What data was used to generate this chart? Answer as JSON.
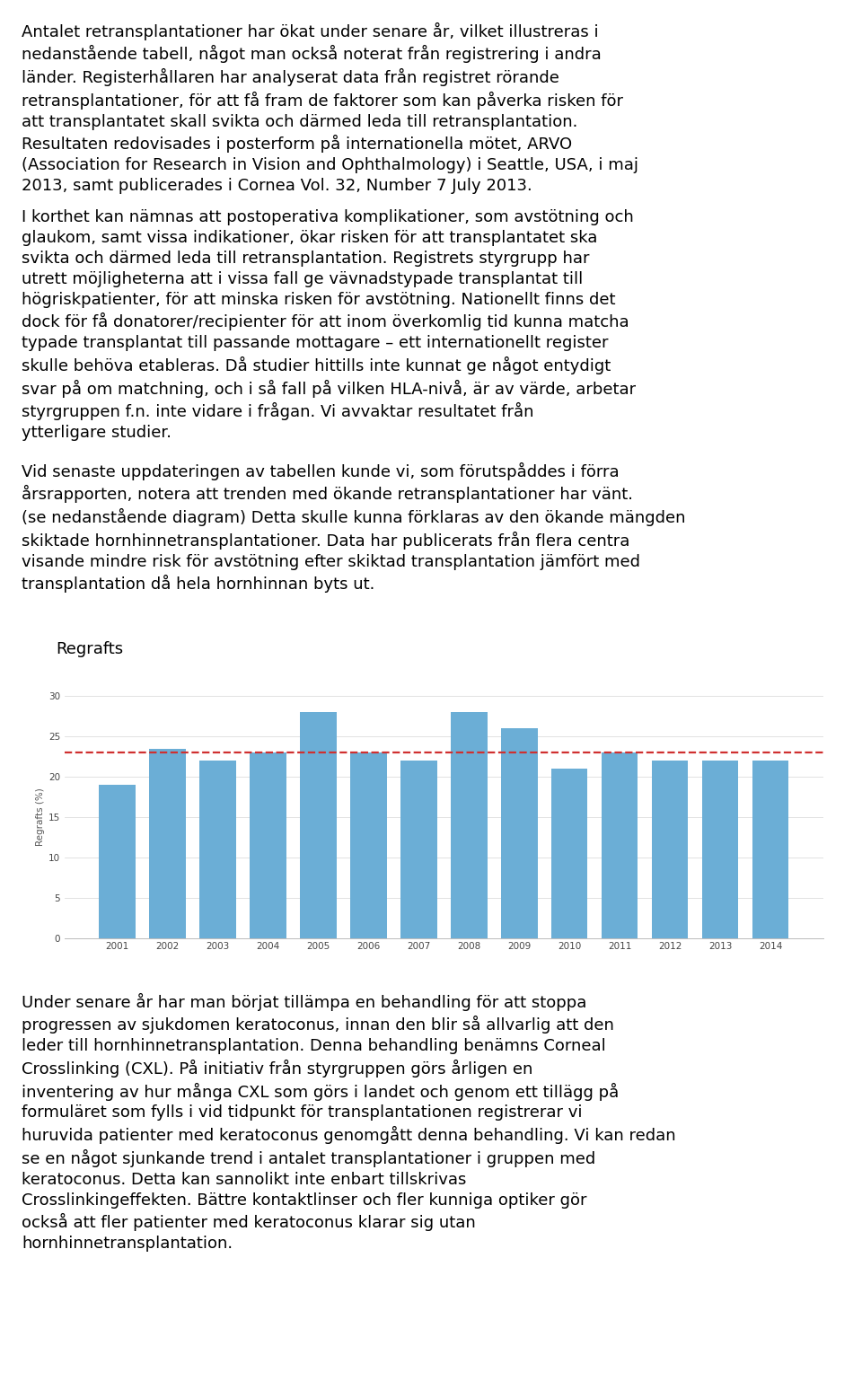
{
  "paragraphs": [
    "Antalet retransplantationer har ökat under senare år, vilket illustreras i nedanstående tabell, något man också noterat från registrering i andra länder. Registerhållaren har analyserat data från registret rörande retransplantationer, för att få fram de faktorer som kan påverka risken för att transplantatet skall svikta och därmed leda till retransplantation. Resultaten redovisades i posterform på internationella mötet, ARVO (Association for Research in Vision and Ophthalmology) i Seattle, USA, i maj 2013, samt publicerades i Cornea Vol. 32, Number 7 July 2013.",
    "I korthet kan nämnas att postoperativa komplikationer, som avstötning och glaukom, samt vissa indikationer, ökar risken för att transplantatet ska svikta och därmed leda till retransplantation. Registrets styrgrupp har utrett möjligheterna att i vissa fall ge vävnadstypade transplantat till högriskpatienter, för att minska risken för avstötning. Nationellt finns det dock för få donatorer/recipienter för att inom överkomlig tid kunna matcha typade transplantat till passande mottagare – ett internationellt register skulle behöva etableras. Då studier hittills inte kunnat ge något entydigt svar på om matchning, och i så fall på vilken HLA-nivå, är av värde, arbetar styrgruppen f.n. inte vidare i frågan. Vi avvaktar resultatet från ytterligare studier.",
    "Vid senaste uppdateringen av tabellen kunde vi, som förutspåddes i förra årsrapporten, notera att trenden med ökande retransplantationer har vänt. (se nedanstående diagram) Detta skulle kunna förklaras av den ökande mängden skiktade hornhinnetransplantationer. Data har publicerats från flera centra visande mindre risk för avstötning efter skiktad transplantation jämfört med transplantation då hela hornhinnan byts ut.",
    "Under senare år har man börjat tillämpa en behandling för att stoppa progressen av sjukdomen keratoconus, innan den blir så allvarlig att den leder till hornhinnetransplantation. Denna behandling benämns Corneal Crosslinking (CXL). På initiativ från styrgruppen görs årligen en inventering av hur många CXL som görs i landet och genom ett tillägg på formuläret som fylls i vid tidpunkt för transplantationen registrerar vi huruvida patienter med keratoconus genomgått denna behandling. Vi kan redan se en något sjunkande trend i antalet transplantationer i gruppen med keratoconus. Detta kan sannolikt inte enbart tillskrivas Crosslinkingeffekten. Bättre kontaktlinser och fler kunniga optiker gör också att fler patienter med keratoconus klarar sig utan hornhinnetransplantation."
  ],
  "chart_title": "Regrafts",
  "chart_title_fontsize": 13,
  "years": [
    2001,
    2002,
    2003,
    2004,
    2005,
    2006,
    2007,
    2008,
    2009,
    2010,
    2011,
    2012,
    2013,
    2014
  ],
  "values": [
    19.0,
    23.5,
    22.0,
    23.0,
    28.0,
    23.0,
    22.0,
    28.0,
    26.0,
    21.0,
    23.0,
    22.0,
    22.0,
    22.0
  ],
  "bar_color": "#6baed6",
  "dashed_line_y": 23.0,
  "dashed_line_color": "#d03030",
  "ylabel": "Regrafts (%)",
  "ylim": [
    0,
    30
  ],
  "yticks": [
    0,
    5,
    10,
    15,
    20,
    25,
    30
  ],
  "background_color": "#ffffff",
  "text_color": "#000000",
  "body_fontsize": 13.0,
  "body_linespacing": 1.35,
  "max_chars": 76
}
